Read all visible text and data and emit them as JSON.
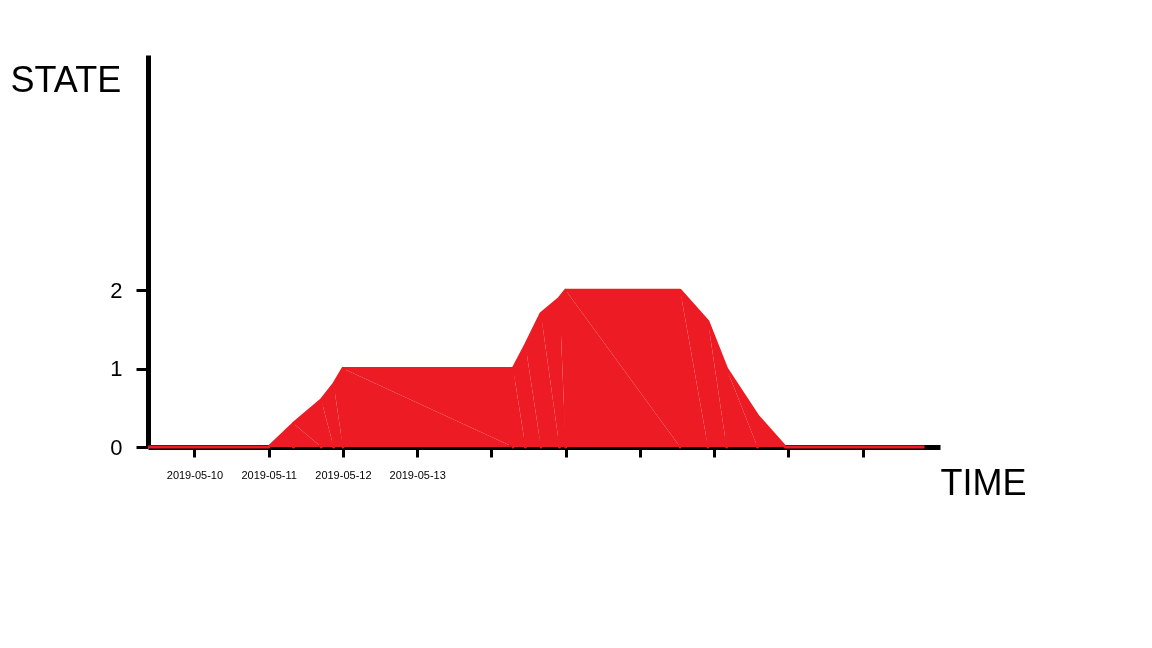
{
  "chart_data": {
    "type": "area",
    "xlabel": "TIME",
    "ylabel": "STATE",
    "x": [
      "2019-05-09T09:00",
      "2019-05-11",
      "2019-05-11T08:00",
      "2019-05-11T17:00",
      "2019-05-11T21:00",
      "2019-05-12",
      "2019-05-14T07:00",
      "2019-05-14T11:00",
      "2019-05-14T16:00",
      "2019-05-14T22:00",
      "2019-05-15",
      "2019-05-16T13:00",
      "2019-05-16T22:00",
      "2019-05-17T04:00",
      "2019-05-17T14:00",
      "2019-05-17T23:00",
      "2019-05-19T20:00"
    ],
    "series": [
      {
        "color": "#ed1c24",
        "values": [
          0,
          0,
          0.3,
          0.6,
          0.8,
          1,
          1,
          1.3,
          1.7,
          1.9,
          2,
          2,
          1.6,
          1,
          0.4,
          0,
          0
        ]
      }
    ],
    "xlim": [
      "2019-05-09T09:00",
      "2019-05-20T01:00"
    ],
    "xticks": [
      "2019-05-10",
      "2019-05-11",
      "2019-05-12",
      "2019-05-13",
      {
        "value": "2019-05-14",
        "label": null
      },
      {
        "value": "2019-05-15",
        "label": null
      },
      {
        "value": "2019-05-16",
        "label": null
      },
      {
        "value": "2019-05-17",
        "label": null
      },
      {
        "value": "2019-05-18",
        "label": null
      },
      {
        "value": "2019-05-19",
        "label": null
      }
    ],
    "ylim": [
      0,
      5
    ],
    "yticks": [
      0,
      1,
      2
    ]
  }
}
